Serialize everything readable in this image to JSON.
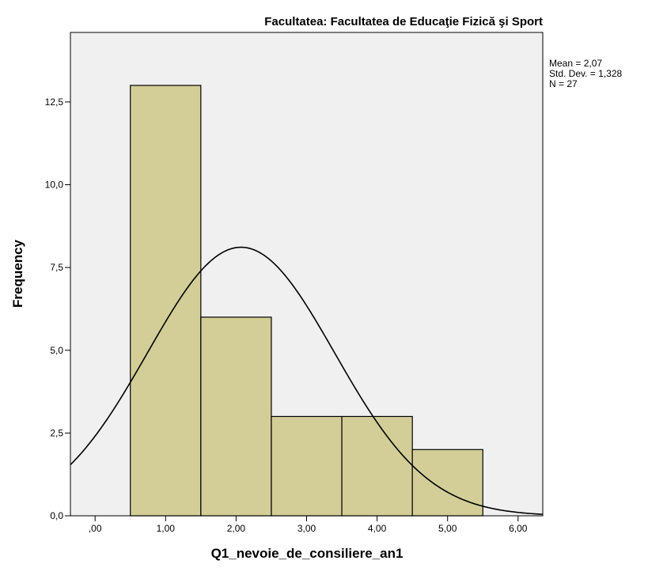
{
  "chart_data": {
    "type": "bar",
    "subtype": "histogram",
    "title": "Facultatea: Facultatea de Educaţie Fizică şi Sport",
    "xlabel": "Q1_nevoie_de_consiliere_an1",
    "ylabel": "Frequency",
    "bins": [
      {
        "from": 0.5,
        "to": 1.5,
        "value": 13
      },
      {
        "from": 1.5,
        "to": 2.5,
        "value": 6
      },
      {
        "from": 2.5,
        "to": 3.5,
        "value": 3
      },
      {
        "from": 3.5,
        "to": 4.5,
        "value": 3
      },
      {
        "from": 4.5,
        "to": 5.5,
        "value": 2
      }
    ],
    "xlim": [
      -0.35,
      6.35
    ],
    "ylim": [
      0,
      14.6
    ],
    "xticks": [
      0,
      1,
      2,
      3,
      4,
      5,
      6
    ],
    "xtick_labels": [
      ",00",
      "1,00",
      "2,00",
      "3,00",
      "4,00",
      "5,00",
      "6,00"
    ],
    "yticks": [
      0,
      2.5,
      5,
      7.5,
      10,
      12.5
    ],
    "ytick_labels": [
      "0,0",
      "2,5",
      "5,0",
      "7,5",
      "10,0",
      "12,5"
    ],
    "normal_curve": {
      "mean": 2.07,
      "sd": 1.328,
      "n": 27,
      "bin_width": 1
    },
    "stats_lines": [
      "Mean = 2,07",
      "Std. Dev. = 1,328",
      "N = 27"
    ],
    "colors": {
      "bar_fill": "#d3ce97",
      "bar_stroke": "#000000",
      "plot_bg": "#f0f0f0",
      "curve": "#000000"
    },
    "grid": false,
    "legend": "none"
  }
}
